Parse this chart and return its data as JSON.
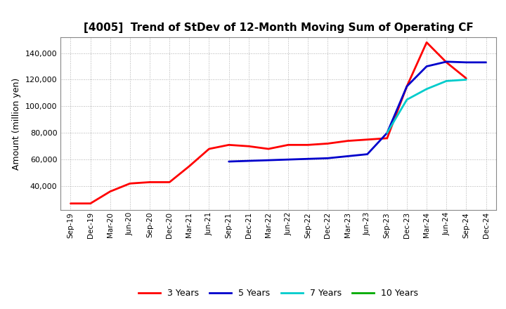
{
  "title": "[4005]  Trend of StDev of 12-Month Moving Sum of Operating CF",
  "ylabel": "Amount (million yen)",
  "ylim": [
    22000,
    152000
  ],
  "yticks": [
    40000,
    60000,
    80000,
    100000,
    120000,
    140000
  ],
  "background_color": "#ffffff",
  "grid_color": "#aaaaaa",
  "series": {
    "3 Years": {
      "color": "#ff0000",
      "data": [
        [
          "Sep-19",
          27000
        ],
        [
          "Dec-19",
          27000
        ],
        [
          "Mar-20",
          36000
        ],
        [
          "Jun-20",
          42000
        ],
        [
          "Sep-20",
          43000
        ],
        [
          "Dec-20",
          43000
        ],
        [
          "Mar-21",
          55000
        ],
        [
          "Jun-21",
          68000
        ],
        [
          "Sep-21",
          71000
        ],
        [
          "Dec-21",
          70000
        ],
        [
          "Mar-22",
          68000
        ],
        [
          "Jun-22",
          71000
        ],
        [
          "Sep-22",
          71000
        ],
        [
          "Dec-22",
          72000
        ],
        [
          "Mar-23",
          74000
        ],
        [
          "Jun-23",
          75000
        ],
        [
          "Sep-23",
          76000
        ],
        [
          "Dec-23",
          115000
        ],
        [
          "Mar-24",
          148000
        ],
        [
          "Jun-24",
          133000
        ],
        [
          "Sep-24",
          121000
        ],
        [
          "Dec-24",
          null
        ]
      ]
    },
    "5 Years": {
      "color": "#0000cc",
      "data": [
        [
          "Sep-19",
          null
        ],
        [
          "Dec-19",
          null
        ],
        [
          "Mar-20",
          null
        ],
        [
          "Jun-20",
          null
        ],
        [
          "Sep-20",
          null
        ],
        [
          "Dec-20",
          null
        ],
        [
          "Mar-21",
          null
        ],
        [
          "Jun-21",
          null
        ],
        [
          "Sep-21",
          58500
        ],
        [
          "Dec-21",
          59000
        ],
        [
          "Mar-22",
          59500
        ],
        [
          "Jun-22",
          60000
        ],
        [
          "Sep-22",
          60500
        ],
        [
          "Dec-22",
          61000
        ],
        [
          "Mar-23",
          62500
        ],
        [
          "Jun-23",
          64000
        ],
        [
          "Sep-23",
          80000
        ],
        [
          "Dec-23",
          115000
        ],
        [
          "Mar-24",
          130000
        ],
        [
          "Jun-24",
          133500
        ],
        [
          "Sep-24",
          133000
        ],
        [
          "Dec-24",
          133000
        ]
      ]
    },
    "7 Years": {
      "color": "#00cccc",
      "data": [
        [
          "Sep-19",
          null
        ],
        [
          "Dec-19",
          null
        ],
        [
          "Mar-20",
          null
        ],
        [
          "Jun-20",
          null
        ],
        [
          "Sep-20",
          null
        ],
        [
          "Dec-20",
          null
        ],
        [
          "Mar-21",
          null
        ],
        [
          "Jun-21",
          null
        ],
        [
          "Sep-21",
          null
        ],
        [
          "Dec-21",
          null
        ],
        [
          "Mar-22",
          null
        ],
        [
          "Jun-22",
          null
        ],
        [
          "Sep-22",
          null
        ],
        [
          "Dec-22",
          null
        ],
        [
          "Mar-23",
          null
        ],
        [
          "Jun-23",
          null
        ],
        [
          "Sep-23",
          80000
        ],
        [
          "Dec-23",
          105000
        ],
        [
          "Mar-24",
          113000
        ],
        [
          "Jun-24",
          119000
        ],
        [
          "Sep-24",
          120000
        ],
        [
          "Dec-24",
          null
        ]
      ]
    },
    "10 Years": {
      "color": "#00aa00",
      "data": [
        [
          "Sep-19",
          null
        ],
        [
          "Dec-19",
          null
        ],
        [
          "Mar-20",
          null
        ],
        [
          "Jun-20",
          null
        ],
        [
          "Sep-20",
          null
        ],
        [
          "Dec-20",
          null
        ],
        [
          "Mar-21",
          null
        ],
        [
          "Jun-21",
          null
        ],
        [
          "Sep-21",
          null
        ],
        [
          "Dec-21",
          null
        ],
        [
          "Mar-22",
          null
        ],
        [
          "Jun-22",
          null
        ],
        [
          "Sep-22",
          null
        ],
        [
          "Dec-22",
          null
        ],
        [
          "Mar-23",
          null
        ],
        [
          "Jun-23",
          null
        ],
        [
          "Sep-23",
          null
        ],
        [
          "Dec-23",
          null
        ],
        [
          "Mar-24",
          null
        ],
        [
          "Jun-24",
          null
        ],
        [
          "Sep-24",
          null
        ],
        [
          "Dec-24",
          null
        ]
      ]
    }
  },
  "x_labels": [
    "Sep-19",
    "Dec-19",
    "Mar-20",
    "Jun-20",
    "Sep-20",
    "Dec-20",
    "Mar-21",
    "Jun-21",
    "Sep-21",
    "Dec-21",
    "Mar-22",
    "Jun-22",
    "Sep-22",
    "Dec-22",
    "Mar-23",
    "Jun-23",
    "Sep-23",
    "Dec-23",
    "Mar-24",
    "Jun-24",
    "Sep-24",
    "Dec-24"
  ],
  "legend_labels": [
    "3 Years",
    "5 Years",
    "7 Years",
    "10 Years"
  ],
  "legend_colors": [
    "#ff0000",
    "#0000cc",
    "#00cccc",
    "#00aa00"
  ],
  "line_width": 2.0
}
